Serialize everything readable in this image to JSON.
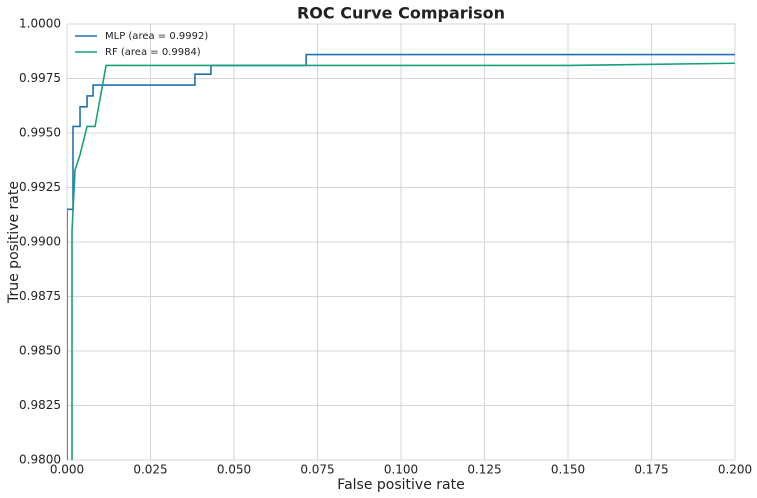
{
  "chart_data": {
    "type": "line",
    "title": "ROC Curve Comparison",
    "x_label": "False positive rate",
    "y_label": "True positive rate",
    "xlim": [
      0,
      0.2
    ],
    "ylim": [
      0.98,
      1.0
    ],
    "xticks": [
      {
        "value": 0,
        "label": "0.000"
      },
      {
        "value": 0.025,
        "label": "0.025"
      },
      {
        "value": 0.05,
        "label": "0.050"
      },
      {
        "value": 0.075,
        "label": "0.075"
      },
      {
        "value": 0.1,
        "label": "0.100"
      },
      {
        "value": 0.125,
        "label": "0.125"
      },
      {
        "value": 0.15,
        "label": "0.150"
      },
      {
        "value": 0.175,
        "label": "0.175"
      },
      {
        "value": 0.2,
        "label": "0.200"
      }
    ],
    "yticks": [
      {
        "value": 0.98,
        "label": "0.9800"
      },
      {
        "value": 0.9825,
        "label": "0.9825"
      },
      {
        "value": 0.985,
        "label": "0.9850"
      },
      {
        "value": 0.9875,
        "label": "0.9875"
      },
      {
        "value": 0.99,
        "label": "0.9900"
      },
      {
        "value": 0.9925,
        "label": "0.9925"
      },
      {
        "value": 0.995,
        "label": "0.9950"
      },
      {
        "value": 0.9975,
        "label": "0.9975"
      },
      {
        "value": 1.0,
        "label": "1.0000"
      }
    ],
    "grid": true,
    "legend": "upper left",
    "series": [
      {
        "name": "MLP (area = 0.9992)",
        "color": "#2171b5",
        "x": [
          0,
          0,
          0.0018,
          0.0018,
          0.0039,
          0.0039,
          0.006,
          0.006,
          0.0078,
          0.0078,
          0.0383,
          0.0383,
          0.0431,
          0.0431,
          0.0716,
          0.0716,
          0.2
        ],
        "values": [
          0.978,
          0.9915,
          0.9915,
          0.9953,
          0.9953,
          0.9962,
          0.9962,
          0.9967,
          0.9967,
          0.9972,
          0.9972,
          0.9977,
          0.9977,
          0.9981,
          0.9981,
          0.9986,
          0.9986
        ]
      },
      {
        "name": "RF (area = 0.9984)",
        "color": "#17a07a",
        "x": [
          0.0015,
          0.0015,
          0.0024,
          0.0039,
          0.006,
          0.0084,
          0.0117,
          0.15,
          0.2
        ],
        "values": [
          0.978,
          0.9905,
          0.9933,
          0.994,
          0.9953,
          0.9953,
          0.9981,
          0.9981,
          0.9982
        ]
      }
    ]
  }
}
